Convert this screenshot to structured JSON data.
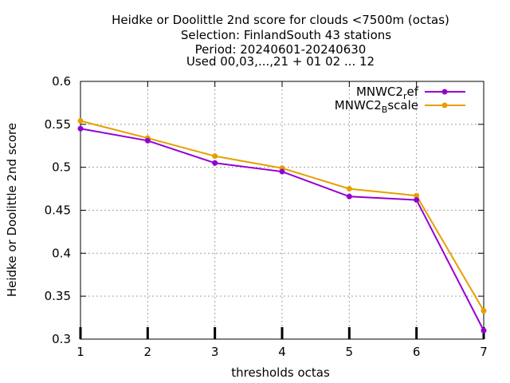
{
  "chart_data": {
    "type": "line",
    "title_lines": [
      "Heidke or Doolittle 2nd score  for clouds <7500m (octas)",
      "Selection: FinlandSouth     43 stations",
      "Period: 20240601-20240630",
      "Used 00,03,...,21 + 01 02 ... 12"
    ],
    "xlabel": "thresholds octas",
    "ylabel": "Heidke or Doolittle 2nd score",
    "x": [
      1,
      2,
      3,
      4,
      5,
      6,
      7
    ],
    "xlim": [
      1,
      7
    ],
    "ylim": [
      0.3,
      0.6
    ],
    "xticks": [
      "1",
      "2",
      "3",
      "4",
      "5",
      "6",
      "7"
    ],
    "yticks": [
      {
        "value": 0.3,
        "label": "0.3"
      },
      {
        "value": 0.35,
        "label": "0.35"
      },
      {
        "value": 0.4,
        "label": "0.4"
      },
      {
        "value": 0.45,
        "label": "0.45"
      },
      {
        "value": 0.5,
        "label": "0.5"
      },
      {
        "value": 0.55,
        "label": "0.55"
      },
      {
        "value": 0.6,
        "label": "0.6"
      }
    ],
    "grid": true,
    "legend_position": "top-right",
    "series": [
      {
        "name_main": "MNWC2",
        "name_sub": "r",
        "name_rest": "ef",
        "color": "#9400d3",
        "values": [
          0.545,
          0.531,
          0.505,
          0.495,
          0.466,
          0.462,
          0.31
        ]
      },
      {
        "name_main": "MNWC2",
        "name_sub": "B",
        "name_rest": "scale",
        "color": "#e69f00",
        "values": [
          0.554,
          0.534,
          0.513,
          0.499,
          0.475,
          0.467,
          0.333
        ]
      }
    ]
  }
}
